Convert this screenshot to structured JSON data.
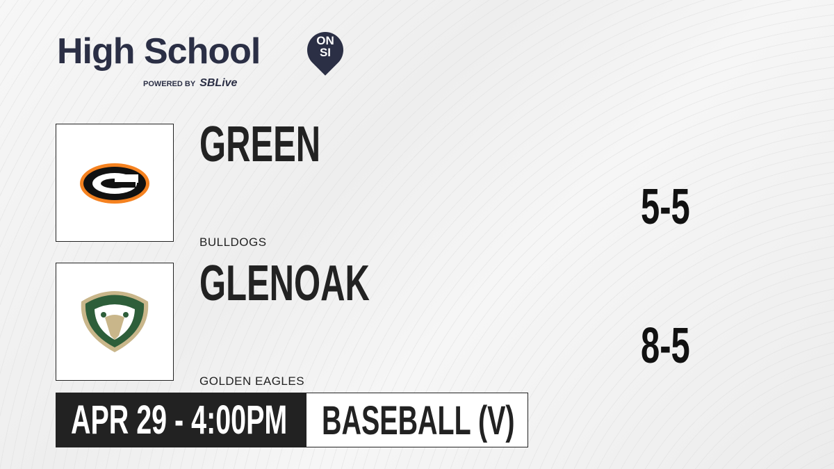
{
  "brand": {
    "title": "High School",
    "badge_top": "ON",
    "badge_bottom": "SI",
    "powered_by": "POWERED BY",
    "partner": "SBLive",
    "partner_prefix": "S"
  },
  "teams": [
    {
      "name": "GREEN",
      "mascot": "BULLDOGS",
      "record": "5-5",
      "logo_icon": "green-bulldogs-g-logo",
      "colors": [
        "#f58220",
        "#000000"
      ]
    },
    {
      "name": "GLENOAK",
      "mascot": "GOLDEN EAGLES",
      "record": "8-5",
      "logo_icon": "glenoak-eagle-logo",
      "colors": [
        "#2e5e3a",
        "#c9b68a"
      ]
    }
  ],
  "game": {
    "datetime": "APR 29 - 4:00PM",
    "sport": "BASEBALL (V)"
  }
}
